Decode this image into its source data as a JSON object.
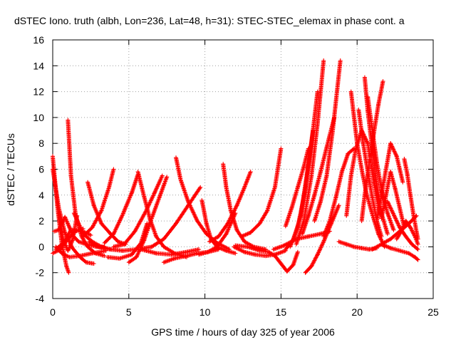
{
  "chart_data": {
    "type": "scatter",
    "title": "dSTEC Iono. truth (albh, Lon=236, Lat=48, h=31): STEC-STEC_elemax in phase cont. a",
    "xlabel": "GPS time / hours of day 325 of year 2006",
    "ylabel": "dSTEC  / TECUs",
    "xlim": [
      0,
      25
    ],
    "ylim": [
      -4,
      16
    ],
    "xticks": [
      0,
      5,
      10,
      15,
      20,
      25
    ],
    "yticks": [
      -4,
      -2,
      0,
      2,
      4,
      6,
      8,
      10,
      12,
      14,
      16
    ],
    "grid": true,
    "marker": "+",
    "color": "#ff0000",
    "series": [
      {
        "x": [
          0.0,
          0.3,
          0.6,
          0.9,
          1.05
        ],
        "y": [
          7.0,
          3.2,
          0.2,
          -1.5,
          -2.0
        ]
      },
      {
        "x": [
          0.0,
          0.4,
          0.8,
          1.3,
          1.8,
          2.2,
          2.7
        ],
        "y": [
          6.0,
          3.0,
          1.1,
          -0.1,
          -0.8,
          -1.2,
          -1.3
        ]
      },
      {
        "x": [
          0.0,
          0.5,
          1.0,
          1.5,
          2.0
        ],
        "y": [
          -0.5,
          -0.2,
          0.6,
          1.2,
          1.4
        ]
      },
      {
        "x": [
          0.2,
          0.7,
          1.2,
          1.8,
          2.5
        ],
        "y": [
          -0.2,
          0.3,
          1.3,
          1.3,
          0.9
        ]
      },
      {
        "x": [
          0.1,
          0.4,
          0.8,
          1.1,
          1.3,
          1.7,
          2.2,
          2.9,
          3.4
        ],
        "y": [
          1.2,
          1.3,
          2.3,
          1.5,
          0.9,
          0.4,
          0.2,
          0.0,
          0.0
        ]
      },
      {
        "x": [
          0.2,
          0.6,
          1.1,
          1.8,
          2.6,
          3.5
        ],
        "y": [
          0.0,
          -0.5,
          -0.8,
          -0.7,
          -0.5,
          -0.3
        ]
      },
      {
        "x": [
          1.0,
          1.2,
          1.5,
          1.9,
          2.3,
          2.8,
          3.4
        ],
        "y": [
          9.8,
          5.5,
          2.5,
          0.8,
          0.0,
          -0.5,
          -0.7
        ]
      },
      {
        "x": [
          0.4,
          0.7,
          1.0,
          1.3,
          1.6
        ],
        "y": [
          2.6,
          0.5,
          -0.3,
          0.5,
          2.4
        ]
      },
      {
        "x": [
          2.3,
          2.7,
          3.2,
          3.8,
          4.3,
          4.8
        ],
        "y": [
          5.0,
          3.2,
          1.8,
          1.0,
          0.4,
          0.2
        ]
      },
      {
        "x": [
          2.0,
          2.6,
          3.2,
          3.7,
          4.0
        ],
        "y": [
          0.8,
          1.5,
          2.8,
          4.6,
          6.0
        ]
      },
      {
        "x": [
          1.4,
          2.0,
          2.6,
          3.2,
          3.8
        ],
        "y": [
          2.6,
          1.0,
          0.4,
          0.0,
          -0.2
        ]
      },
      {
        "x": [
          2.4,
          3.0,
          3.8,
          4.6,
          5.5,
          6.5
        ],
        "y": [
          0.4,
          0.0,
          -0.2,
          -0.3,
          -0.2,
          0.0
        ]
      },
      {
        "x": [
          3.4,
          4.0,
          4.6,
          5.2,
          5.6
        ],
        "y": [
          0.3,
          1.0,
          2.5,
          4.2,
          5.6
        ]
      },
      {
        "x": [
          4.0,
          4.7,
          5.4,
          6.1,
          6.7,
          7.2
        ],
        "y": [
          0.0,
          0.2,
          1.2,
          2.7,
          4.2,
          5.5
        ]
      },
      {
        "x": [
          5.0,
          5.5,
          6.0,
          6.5,
          7.0,
          7.5
        ],
        "y": [
          -1.2,
          -0.8,
          0.5,
          2.2,
          3.8,
          5.4
        ]
      },
      {
        "x": [
          3.6,
          4.4,
          5.2,
          5.8,
          6.2
        ],
        "y": [
          -0.8,
          -0.9,
          -0.6,
          0.3,
          1.8
        ]
      },
      {
        "x": [
          5.6,
          6.0,
          6.4,
          6.8,
          7.3,
          8.0,
          8.8
        ],
        "y": [
          5.8,
          3.9,
          2.1,
          0.8,
          0.0,
          -0.5,
          -0.8
        ]
      },
      {
        "x": [
          5.8,
          6.8,
          7.8,
          8.8,
          9.6
        ],
        "y": [
          -0.2,
          -0.5,
          -0.6,
          -0.4,
          -0.2
        ]
      },
      {
        "x": [
          7.3,
          8.0,
          8.8,
          9.5,
          10.2,
          10.9
        ],
        "y": [
          -1.2,
          -0.9,
          -0.7,
          -0.5,
          -0.4,
          -0.2
        ]
      },
      {
        "x": [
          8.1,
          8.4,
          8.9,
          9.5,
          10.1,
          10.8,
          11.6
        ],
        "y": [
          6.9,
          5.2,
          3.5,
          2.0,
          1.0,
          0.3,
          -0.2
        ]
      },
      {
        "x": [
          6.5,
          7.3,
          8.1,
          8.9,
          9.7
        ],
        "y": [
          0.0,
          0.6,
          1.8,
          3.2,
          4.6
        ]
      },
      {
        "x": [
          9.8,
          10.1,
          10.4,
          10.8,
          11.4,
          12.0
        ],
        "y": [
          3.6,
          1.8,
          0.6,
          0.0,
          -0.3,
          -0.5
        ]
      },
      {
        "x": [
          9.6,
          10.2,
          10.8,
          11.4,
          12.0
        ],
        "y": [
          -0.6,
          -0.4,
          0.0,
          1.0,
          2.6
        ]
      },
      {
        "x": [
          11.2,
          11.4,
          11.7,
          12.1,
          12.6,
          13.2,
          14.0
        ],
        "y": [
          6.4,
          4.6,
          2.8,
          1.3,
          0.4,
          0.0,
          -0.2
        ]
      },
      {
        "x": [
          10.3,
          10.9,
          11.5,
          12.1,
          12.6,
          13.0
        ],
        "y": [
          0.4,
          0.8,
          1.8,
          3.2,
          4.6,
          5.8
        ]
      },
      {
        "x": [
          11.9,
          12.6,
          13.3,
          14.0,
          14.6,
          15.3
        ],
        "y": [
          0.0,
          -0.4,
          -0.6,
          -0.7,
          -0.6,
          -0.3
        ]
      },
      {
        "x": [
          12.0,
          12.8,
          13.6,
          14.2,
          14.6,
          15.0,
          15.4,
          15.8,
          16.1
        ],
        "y": [
          0.1,
          0.0,
          -0.3,
          -0.4,
          -0.7,
          -1.3,
          -1.9,
          -1.4,
          -0.4
        ]
      },
      {
        "x": [
          12.4,
          13.0,
          13.6,
          14.1,
          14.6,
          15.0
        ],
        "y": [
          0.8,
          1.1,
          1.8,
          2.8,
          4.6,
          7.6
        ]
      },
      {
        "x": [
          14.5,
          15.2,
          16.0,
          16.8,
          17.6,
          18.2
        ],
        "y": [
          -0.2,
          0.1,
          0.6,
          0.8,
          1.0,
          1.2
        ]
      },
      {
        "x": [
          15.3,
          15.7,
          16.1,
          16.5,
          16.8
        ],
        "y": [
          1.6,
          3.0,
          4.6,
          6.2,
          7.6
        ]
      },
      {
        "x": [
          15.3,
          15.8,
          16.3,
          16.7,
          17.1
        ],
        "y": [
          -0.2,
          0.5,
          2.4,
          5.6,
          9.0
        ]
      },
      {
        "x": [
          15.6,
          16.1,
          16.6,
          17.0,
          17.4
        ],
        "y": [
          0.0,
          1.5,
          4.5,
          8.0,
          12.0
        ]
      },
      {
        "x": [
          16.0,
          16.5,
          17.0,
          17.4,
          17.8
        ],
        "y": [
          0.2,
          2.0,
          5.5,
          9.5,
          14.4
        ]
      },
      {
        "x": [
          16.4,
          16.8,
          17.2,
          17.6,
          18.0,
          18.5
        ],
        "y": [
          1.0,
          2.4,
          4.0,
          5.8,
          7.7,
          10.0
        ]
      },
      {
        "x": [
          18.9,
          18.4,
          18.0,
          17.6,
          17.2
        ],
        "y": [
          14.4,
          9.0,
          5.5,
          3.5,
          2.0
        ]
      },
      {
        "x": [
          16.6,
          17.0,
          17.4,
          17.8,
          18.3,
          18.8
        ],
        "y": [
          -2.0,
          -1.5,
          -0.6,
          0.4,
          1.8,
          3.2
        ]
      },
      {
        "x": [
          17.8,
          18.2,
          18.6,
          19.0,
          19.4,
          19.8
        ],
        "y": [
          0.8,
          2.0,
          3.8,
          5.8,
          7.2,
          7.6
        ]
      },
      {
        "x": [
          18.8,
          19.3,
          19.8,
          20.3,
          20.8,
          21.3
        ],
        "y": [
          0.4,
          0.2,
          0.0,
          -0.1,
          -0.2,
          -0.1
        ]
      },
      {
        "x": [
          19.6,
          19.8,
          20.0,
          20.3,
          20.6,
          21.0,
          21.4,
          21.8
        ],
        "y": [
          12.0,
          10.0,
          8.0,
          6.0,
          4.2,
          2.5,
          1.0,
          0.0
        ]
      },
      {
        "x": [
          20.1,
          20.4,
          20.7,
          21.0,
          21.3,
          21.6
        ],
        "y": [
          10.6,
          8.0,
          5.8,
          3.8,
          2.0,
          0.8
        ]
      },
      {
        "x": [
          20.5,
          20.7,
          21.0,
          21.3,
          21.6,
          22.0
        ],
        "y": [
          13.1,
          10.5,
          7.5,
          4.8,
          2.6,
          1.0
        ]
      },
      {
        "x": [
          20.7,
          21.0,
          21.3,
          21.6,
          22.0,
          22.4
        ],
        "y": [
          11.6,
          9.0,
          6.5,
          4.4,
          2.6,
          1.3
        ]
      },
      {
        "x": [
          19.3,
          19.6,
          19.9,
          20.3,
          20.7,
          21.1,
          21.5
        ],
        "y": [
          2.4,
          5.5,
          7.5,
          9.0,
          8.0,
          5.0,
          2.5
        ]
      },
      {
        "x": [
          20.3,
          20.5,
          20.8,
          21.1,
          21.4,
          21.7
        ],
        "y": [
          2.0,
          4.0,
          6.5,
          8.8,
          11.0,
          12.8
        ]
      },
      {
        "x": [
          21.3,
          21.6,
          21.9,
          22.2,
          22.6,
          23.0
        ],
        "y": [
          2.0,
          4.0,
          6.0,
          8.0,
          7.0,
          5.0
        ]
      },
      {
        "x": [
          21.6,
          21.9,
          22.2,
          22.5,
          22.8,
          23.1
        ],
        "y": [
          2.2,
          4.0,
          5.8,
          4.5,
          3.0,
          1.5
        ]
      },
      {
        "x": [
          22.0,
          22.4,
          22.8,
          23.2,
          23.6,
          24.0
        ],
        "y": [
          3.5,
          2.5,
          1.5,
          0.8,
          0.2,
          -0.2
        ]
      },
      {
        "x": [
          21.6,
          22.2,
          22.8,
          23.4,
          23.8,
          24.0
        ],
        "y": [
          0.2,
          -0.1,
          -0.3,
          -0.5,
          -0.8,
          -1.0
        ]
      },
      {
        "x": [
          21.0,
          21.6,
          22.2,
          22.8,
          23.4,
          23.9
        ],
        "y": [
          -0.2,
          0.2,
          0.6,
          1.2,
          1.8,
          2.4
        ]
      },
      {
        "x": [
          23.1,
          23.3,
          23.5,
          23.7,
          23.9,
          24.0
        ],
        "y": [
          6.8,
          5.6,
          4.0,
          2.5,
          1.2,
          0.6
        ]
      },
      {
        "x": [
          22.6,
          22.9,
          23.2,
          23.5,
          23.8,
          24.0
        ],
        "y": [
          0.6,
          1.2,
          2.0,
          1.5,
          0.8,
          0.2
        ]
      }
    ]
  }
}
